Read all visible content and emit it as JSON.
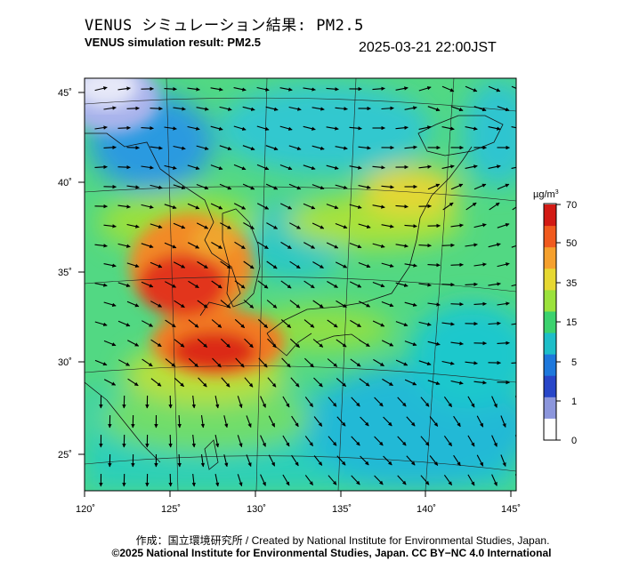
{
  "header": {
    "title_jp": "VENUS シミュレーション結果: PM2.5",
    "title_en": "VENUS simulation result: PM2.5",
    "timestamp": "2025-03-21 22:00JST"
  },
  "map": {
    "lon_range": [
      120,
      145
    ],
    "lat_range": [
      23,
      46
    ],
    "lon_ticks": [
      "120˚",
      "125˚",
      "130˚",
      "135˚",
      "140˚",
      "145˚"
    ],
    "lat_ticks": [
      "45˚",
      "40˚",
      "35˚",
      "30˚",
      "25˚"
    ]
  },
  "colorbar": {
    "unit_prefix": "µg/m",
    "unit_sup": "3",
    "labels": [
      "70",
      "50",
      "35",
      "15",
      "5",
      "1",
      "0"
    ],
    "colors": [
      "#d21a14",
      "#f05a1e",
      "#f5a02d",
      "#e6d832",
      "#9be23c",
      "#3cd26e",
      "#1ebec8",
      "#1e78dc",
      "#2846c8",
      "#8c96dc",
      "#ffffff"
    ]
  },
  "footer": {
    "credit": "作成：国立環境研究所 / Created by National Institute for Environmental Studies, Japan.",
    "license": "©2025 National Institute for Environmental Studies, Japan. CC BY−NC 4.0 International"
  }
}
